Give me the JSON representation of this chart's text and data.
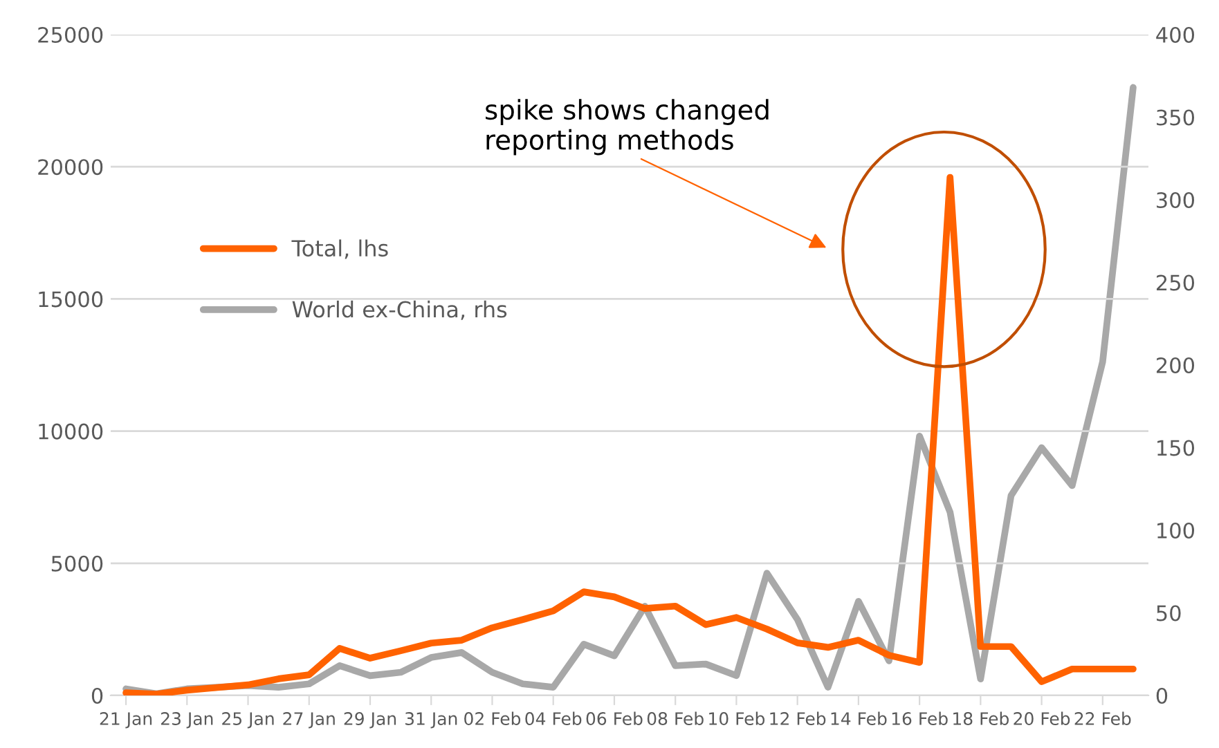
{
  "chart_data": {
    "type": "line",
    "categories": [
      "21 Jan",
      null,
      "23 Jan",
      null,
      "25 Jan",
      null,
      "27 Jan",
      null,
      "29 Jan",
      null,
      "31 Jan",
      null,
      "02 Feb",
      null,
      "04 Feb",
      null,
      "06 Feb",
      null,
      "08 Feb",
      null,
      "10 Feb",
      null,
      "12 Feb",
      null,
      "14 Feb",
      null,
      "16 Feb",
      null,
      "18 Feb",
      null,
      "20 Feb",
      null,
      "22 Feb",
      null
    ],
    "series": [
      {
        "name": "Total, lhs",
        "color": "#ff6200",
        "values": [
          100,
          50,
          200,
          300,
          400,
          630,
          780,
          1780,
          1410,
          1690,
          1980,
          2090,
          2560,
          2870,
          3200,
          3920,
          3730,
          3290,
          3380,
          2680,
          2950,
          2510,
          1990,
          1820,
          2090,
          1520,
          1250,
          19600,
          1850,
          1850,
          520,
          1000,
          1000,
          1000
        ]
      },
      {
        "name": "World ex-China, rhs",
        "color": "#a8a8a8",
        "axis": "y2",
        "values": [
          4,
          1,
          4,
          5,
          6,
          5,
          7,
          18,
          12,
          14,
          23,
          26,
          14,
          7,
          5,
          31,
          24,
          54,
          18,
          19,
          12,
          74,
          46,
          5,
          57,
          21,
          157,
          111,
          10,
          121,
          150,
          127,
          202,
          368
        ]
      }
    ],
    "ylim": [
      0,
      25000
    ],
    "yticks": [
      0,
      5000,
      10000,
      15000,
      20000,
      25000
    ],
    "y2lim": [
      0,
      400
    ],
    "y2ticks": [
      0,
      50,
      100,
      150,
      200,
      250,
      300,
      350,
      400
    ],
    "grid": "y",
    "legend": "top left",
    "line_style": "solid",
    "marker": "none",
    "annotations": [
      "spike shows changed\nreporting methods"
    ]
  }
}
